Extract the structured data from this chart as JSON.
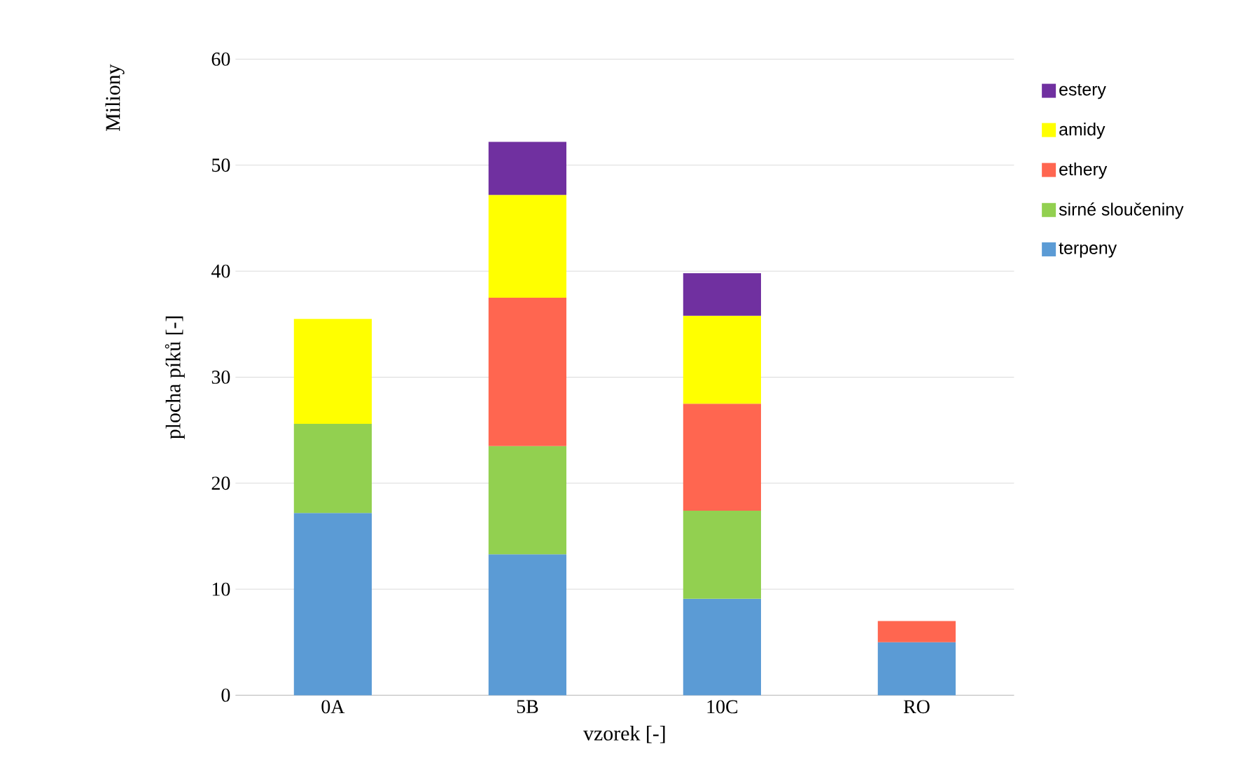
{
  "chart_data": {
    "type": "bar",
    "stacked": true,
    "xlabel": "vzorek [-]",
    "ylabel": "plocha píků [-]",
    "annotations": [
      "Miliony"
    ],
    "categories": [
      "0A",
      "5B",
      "10C",
      "RO"
    ],
    "series": [
      {
        "name": "terpeny",
        "color": "#5b9bd5",
        "values": [
          17.2,
          13.3,
          9.1,
          5.0
        ]
      },
      {
        "name": "sirné sloučeniny",
        "color": "#92d050",
        "values": [
          8.4,
          10.2,
          8.3,
          null
        ]
      },
      {
        "name": "ethery",
        "color": "#ff6650",
        "values": [
          null,
          14.0,
          10.1,
          2.0
        ]
      },
      {
        "name": "amidy",
        "color": "#ffff00",
        "values": [
          9.9,
          9.7,
          8.3,
          null
        ]
      },
      {
        "name": "estery",
        "color": "#7030a0",
        "values": [
          null,
          5.0,
          4.0,
          null
        ]
      }
    ],
    "ylim": [
      0,
      60
    ],
    "yticks": [
      0,
      10,
      20,
      30,
      40,
      50,
      60
    ],
    "grid": "y",
    "legend": "right"
  }
}
